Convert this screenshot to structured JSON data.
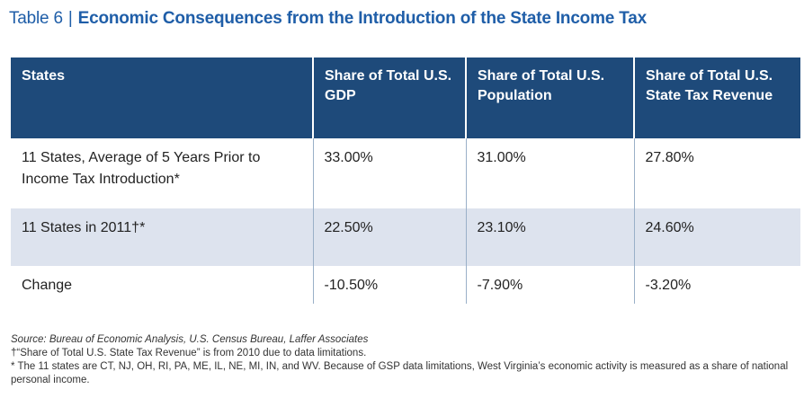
{
  "title": {
    "number": "Table 6",
    "separator": "|",
    "text": "Economic Consequences from the Introduction of the State Income Tax"
  },
  "table": {
    "headers": [
      "States",
      "Share of Total U.S. GDP",
      "Share of Total U.S. Population",
      "Share of Total U.S. State Tax Revenue"
    ],
    "rows": [
      [
        "11 States, Average of 5 Years Prior to Income Tax Introduction*",
        "33.00%",
        "31.00%",
        "27.80%"
      ],
      [
        "11 States in 2011†*",
        "22.50%",
        "23.10%",
        "24.60%"
      ],
      [
        "Change",
        "-10.50%",
        "-7.90%",
        "-3.20%"
      ]
    ]
  },
  "notes": {
    "source": "Source: Bureau of Economic Analysis, U.S. Census Bureau, Laffer Associates",
    "dagger": "†“Share of Total U.S. State Tax Revenue” is from 2010 due to data limitations.",
    "asterisk": "* The 11 states are CT, NJ, OH, RI, PA, ME, IL, NE, MI, IN, and WV. Because of GSP data limitations, West Virginia’s economic activity is measured as a share of national personal income."
  },
  "colors": {
    "title": "#1f5ea8",
    "header_bg": "#1e4a7a",
    "alt_row_bg": "#dde3ee"
  }
}
